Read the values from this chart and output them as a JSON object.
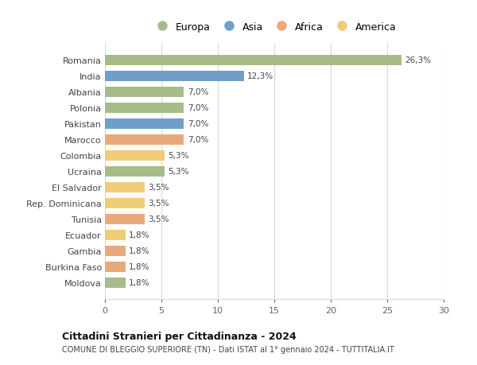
{
  "countries": [
    "Romania",
    "India",
    "Albania",
    "Polonia",
    "Pakistan",
    "Marocco",
    "Colombia",
    "Ucraina",
    "El Salvador",
    "Rep. Dominicana",
    "Tunisia",
    "Ecuador",
    "Gambia",
    "Burkina Faso",
    "Moldova"
  ],
  "values": [
    26.3,
    12.3,
    7.0,
    7.0,
    7.0,
    7.0,
    5.3,
    5.3,
    3.5,
    3.5,
    3.5,
    1.8,
    1.8,
    1.8,
    1.8
  ],
  "labels": [
    "26,3%",
    "12,3%",
    "7,0%",
    "7,0%",
    "7,0%",
    "7,0%",
    "5,3%",
    "5,3%",
    "3,5%",
    "3,5%",
    "3,5%",
    "1,8%",
    "1,8%",
    "1,8%",
    "1,8%"
  ],
  "continents": [
    "Europa",
    "Asia",
    "Europa",
    "Europa",
    "Asia",
    "Africa",
    "America",
    "Europa",
    "America",
    "America",
    "Africa",
    "America",
    "Africa",
    "Africa",
    "Europa"
  ],
  "continent_colors": {
    "Europa": "#a8bc8a",
    "Asia": "#6f9ec9",
    "Africa": "#e8a87c",
    "America": "#f0cc78"
  },
  "legend_order": [
    "Europa",
    "Asia",
    "Africa",
    "America"
  ],
  "title": "Cittadini Stranieri per Cittadinanza - 2024",
  "subtitle": "COMUNE DI BLEGGIO SUPERIORE (TN) - Dati ISTAT al 1° gennaio 2024 - TUTTITALIA.IT",
  "xlim": [
    0,
    30
  ],
  "xticks": [
    0,
    5,
    10,
    15,
    20,
    25,
    30
  ],
  "grid_color": "#d8d8d8",
  "background_color": "#ffffff",
  "bar_height": 0.65
}
